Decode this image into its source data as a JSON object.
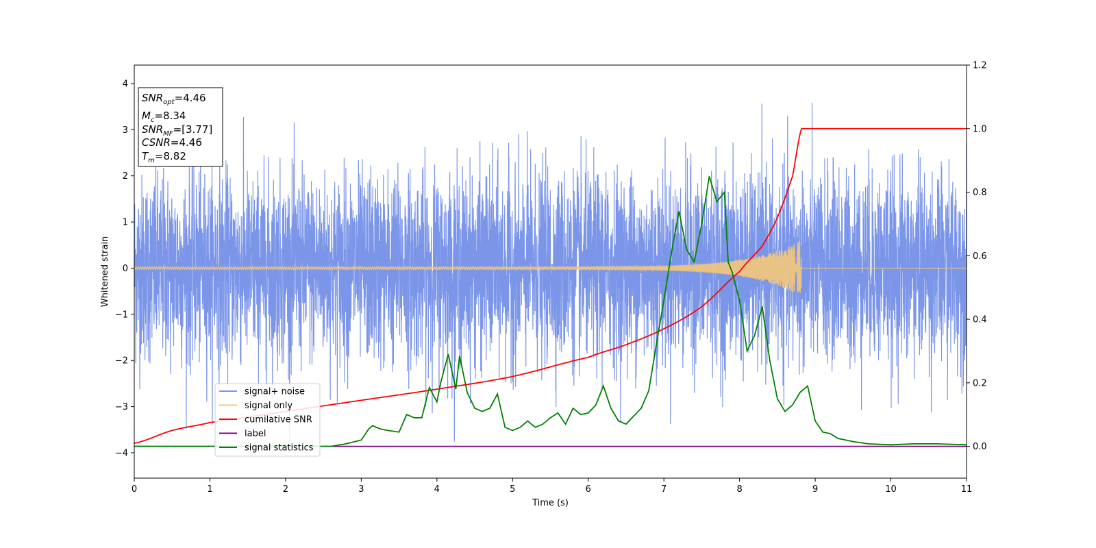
{
  "chart_data": {
    "type": "line",
    "xlabel": "Time (s)",
    "ylabel": "Whitened strain",
    "xlim": [
      0,
      11
    ],
    "ylim": [
      -4.55,
      4.4
    ],
    "y2lim": [
      -0.1,
      1.2
    ],
    "x_ticks": [
      0,
      1,
      2,
      3,
      4,
      5,
      6,
      7,
      8,
      9,
      10,
      11
    ],
    "y_ticks": [
      -4,
      -3,
      -2,
      -1,
      0,
      1,
      2,
      3,
      4
    ],
    "y2_ticks": [
      0.0,
      0.2,
      0.4,
      0.6,
      0.8,
      1.0,
      1.2
    ],
    "grid": false,
    "legend_placement": "lower-left",
    "info_box": {
      "snr_opt_label": "SNR",
      "snr_opt_sub": "opt",
      "snr_opt_value": "=4.46",
      "mc_label": "M",
      "mc_sub": "c",
      "mc_value": "=8.34",
      "snr_mf_label": "SNR",
      "snr_mf_sub": "MF",
      "snr_mf_value": "=[3.77]",
      "csnr_label": "CSNR",
      "csnr_value": "=4.46",
      "tm_label": "T",
      "tm_sub": "m",
      "tm_value": "=8.82"
    },
    "series": [
      {
        "name": "signal+ noise",
        "axis": "left",
        "color": "#7b95e8",
        "description_values": "white noise, std ~1.0, peaks up to ~4.0 and down to ~-4.15"
      },
      {
        "name": "signal only",
        "axis": "left",
        "color": "#f5c87a",
        "chirp_end": 8.82,
        "amplitude_at_end": 0.62
      },
      {
        "name": "cumilative SNR",
        "axis": "right",
        "color": "#ff0000",
        "x": [
          0,
          0.5,
          1,
          2,
          3,
          4,
          5,
          6,
          6.5,
          7,
          7.5,
          8,
          8.3,
          8.5,
          8.7,
          8.82,
          11
        ],
        "values": [
          0.01,
          0.05,
          0.075,
          0.11,
          0.145,
          0.18,
          0.22,
          0.28,
          0.32,
          0.37,
          0.44,
          0.55,
          0.63,
          0.72,
          0.85,
          1.0,
          1.0
        ]
      },
      {
        "name": "label",
        "axis": "right",
        "color": "#800080",
        "x": [
          0,
          11
        ],
        "values": [
          0,
          0
        ]
      },
      {
        "name": "signal statistics",
        "axis": "right",
        "color": "#008000",
        "x": [
          0,
          2.6,
          2.8,
          3.0,
          3.1,
          3.15,
          3.25,
          3.35,
          3.5,
          3.6,
          3.7,
          3.8,
          3.9,
          4.0,
          4.05,
          4.15,
          4.25,
          4.3,
          4.4,
          4.5,
          4.6,
          4.7,
          4.8,
          4.9,
          5.0,
          5.1,
          5.2,
          5.3,
          5.4,
          5.5,
          5.6,
          5.7,
          5.8,
          5.9,
          6.0,
          6.1,
          6.2,
          6.3,
          6.4,
          6.5,
          6.6,
          6.7,
          6.8,
          6.9,
          7.0,
          7.1,
          7.2,
          7.3,
          7.4,
          7.5,
          7.6,
          7.7,
          7.8,
          7.85,
          7.9,
          8.0,
          8.1,
          8.2,
          8.3,
          8.4,
          8.5,
          8.6,
          8.7,
          8.8,
          8.9,
          9.0,
          9.1,
          9.2,
          9.3,
          9.5,
          9.7,
          10.0,
          10.3,
          10.6,
          11.0
        ],
        "values": [
          0.0,
          0.0,
          0.008,
          0.02,
          0.055,
          0.065,
          0.055,
          0.05,
          0.045,
          0.1,
          0.09,
          0.09,
          0.185,
          0.14,
          0.2,
          0.29,
          0.18,
          0.285,
          0.17,
          0.12,
          0.11,
          0.12,
          0.165,
          0.06,
          0.05,
          0.06,
          0.08,
          0.06,
          0.07,
          0.09,
          0.105,
          0.07,
          0.12,
          0.1,
          0.105,
          0.13,
          0.19,
          0.12,
          0.08,
          0.07,
          0.095,
          0.12,
          0.175,
          0.32,
          0.46,
          0.61,
          0.74,
          0.62,
          0.58,
          0.7,
          0.85,
          0.77,
          0.8,
          0.58,
          0.55,
          0.46,
          0.3,
          0.35,
          0.44,
          0.27,
          0.15,
          0.11,
          0.13,
          0.17,
          0.19,
          0.08,
          0.045,
          0.04,
          0.025,
          0.015,
          0.008,
          0.005,
          0.008,
          0.008,
          0.005
        ]
      }
    ]
  }
}
